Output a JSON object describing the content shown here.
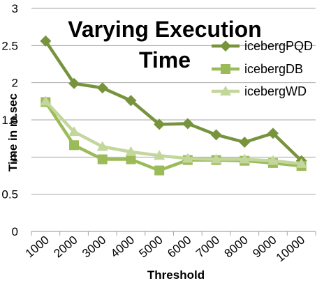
{
  "chart_data": {
    "type": "line",
    "title_lines": [
      "Varying Execution",
      "Time"
    ],
    "xlabel": "Threshold",
    "ylabel": "Time in m.sec",
    "categories": [
      "1000",
      "2000",
      "3000",
      "4000",
      "5000",
      "6000",
      "7000",
      "8000",
      "9000",
      "10000"
    ],
    "y_ticks": [
      "0",
      "0.5",
      "1",
      "1.5",
      "2",
      "2.5",
      "3"
    ],
    "ylim": [
      0,
      3
    ],
    "grid": "horizontal",
    "legend_position": "top-right",
    "series": [
      {
        "name": "icebergPQD",
        "color": "#77933c",
        "marker": "diamond",
        "values": [
          2.56,
          1.99,
          1.93,
          1.76,
          1.44,
          1.45,
          1.3,
          1.2,
          1.32,
          0.95
        ]
      },
      {
        "name": "icebergDB",
        "color": "#9bbb59",
        "marker": "square",
        "values": [
          1.74,
          1.16,
          0.97,
          0.97,
          0.82,
          0.96,
          0.96,
          0.95,
          0.92,
          0.88
        ]
      },
      {
        "name": "icebergWD",
        "color": "#c3d69b",
        "marker": "triangle",
        "values": [
          1.75,
          1.34,
          1.14,
          1.07,
          1.02,
          0.98,
          0.97,
          0.97,
          0.95,
          0.91
        ]
      }
    ]
  }
}
